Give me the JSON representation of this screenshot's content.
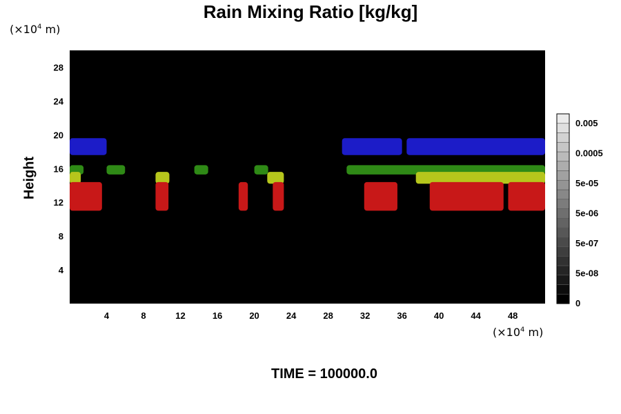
{
  "chart_data": {
    "type": "heatmap",
    "title": "Rain Mixing Ratio [kg/kg]",
    "xlabel": "",
    "ylabel": "Height",
    "x_unit": {
      "prefix": "(×10",
      "exp": "4",
      "suffix": " m)"
    },
    "y_unit": {
      "prefix": "(×10",
      "exp": "4",
      "suffix": " m)"
    },
    "xlim": [
      0,
      51.5
    ],
    "ylim": [
      0,
      30
    ],
    "x_ticks": [
      4,
      8,
      12,
      16,
      20,
      24,
      28,
      32,
      36,
      40,
      44,
      48
    ],
    "y_ticks": [
      4,
      8,
      12,
      16,
      20,
      24,
      28
    ],
    "background_color": "#000000",
    "colorbar": {
      "labels": [
        "0.005",
        "0.0005",
        "5e-05",
        "5e-06",
        "5e-07",
        "5e-08",
        "0"
      ],
      "steps": 20
    },
    "cloud_bands": [
      {
        "color": "#1c1cc8",
        "y": [
          17.6,
          19.6
        ],
        "segments": [
          [
            0,
            4
          ],
          [
            29.5,
            36
          ],
          [
            36.5,
            51.5
          ]
        ]
      },
      {
        "color": "#2f8a16",
        "y": [
          15.3,
          16.4
        ],
        "segments": [
          [
            0,
            1.5
          ],
          [
            4,
            6
          ],
          [
            13.5,
            15
          ],
          [
            20,
            21.5
          ],
          [
            30,
            51.5
          ]
        ]
      },
      {
        "color": "#b6c61c",
        "y": [
          14.2,
          15.6
        ],
        "segments": [
          [
            0,
            1.2
          ],
          [
            9.3,
            10.8
          ],
          [
            21.4,
            23.2
          ],
          [
            37.5,
            51.5
          ]
        ]
      },
      {
        "color": "#c81818",
        "y": [
          11.0,
          14.4
        ],
        "segments": [
          [
            0,
            3.5
          ],
          [
            9.3,
            10.7
          ],
          [
            18.3,
            19.3
          ],
          [
            22,
            23.2
          ],
          [
            31.9,
            35.5
          ],
          [
            39,
            47
          ],
          [
            47.5,
            51.5
          ]
        ]
      }
    ],
    "annotation": "TIME = 100000.0"
  }
}
